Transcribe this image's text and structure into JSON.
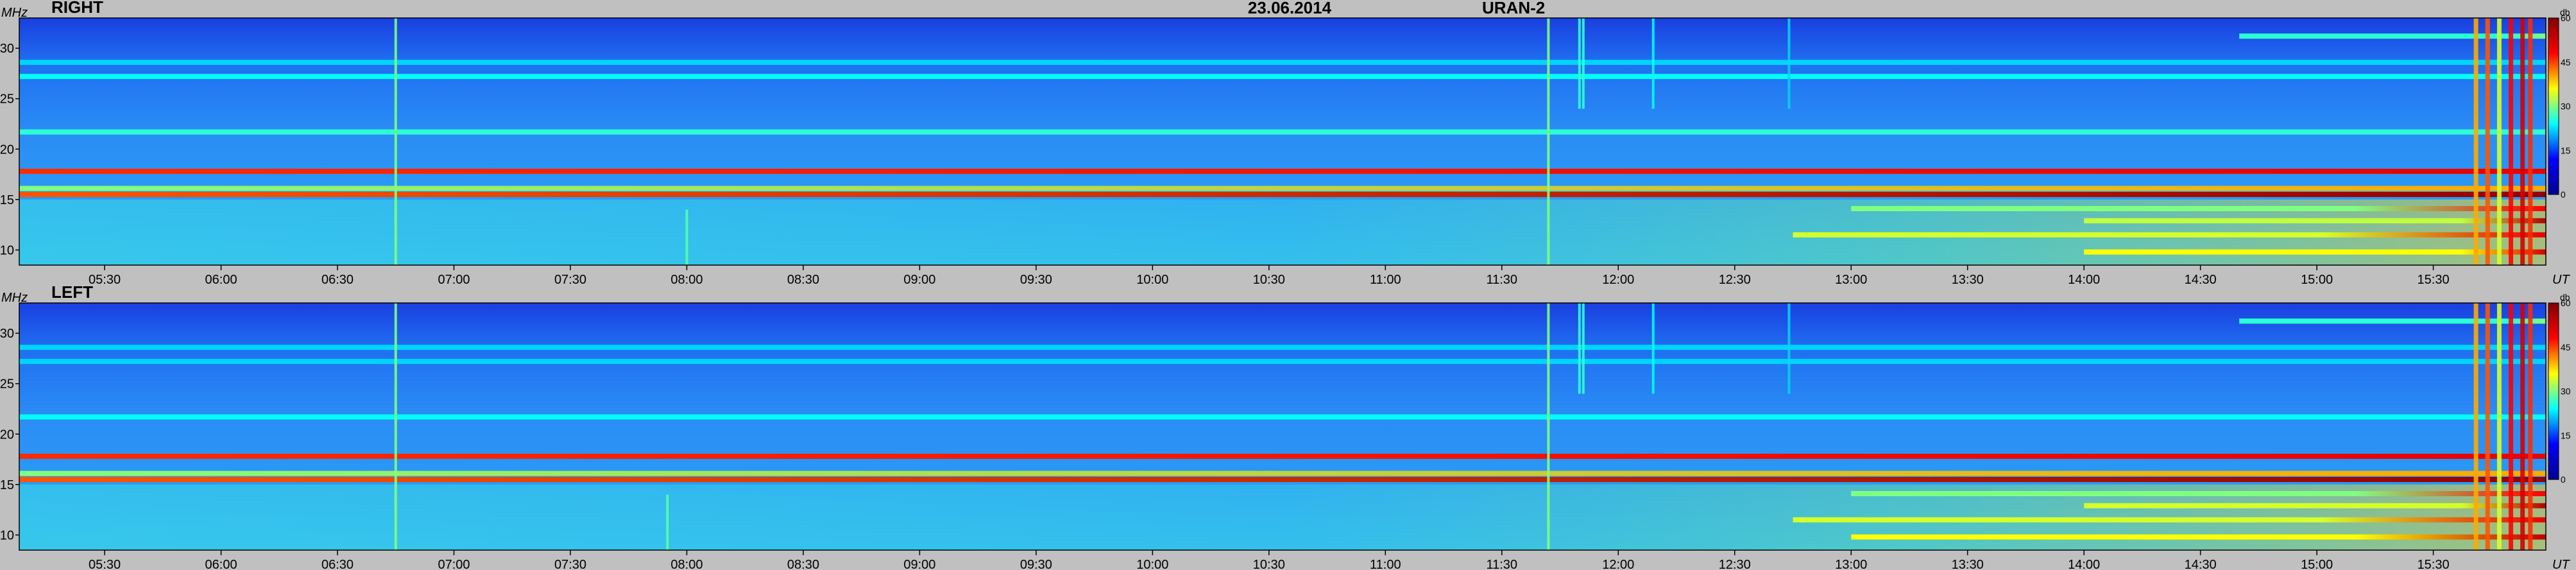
{
  "header": {
    "date": "23.06.2014",
    "instrument": "URAN-2"
  },
  "chart_data": {
    "type": "heatmap",
    "x_unit": "UT",
    "y_unit": "MHz",
    "x_range": [
      "05:08",
      "15:59"
    ],
    "y_range": [
      8.5,
      33
    ],
    "x_ticks": [
      "05:30",
      "06:00",
      "06:30",
      "07:00",
      "07:30",
      "08:00",
      "08:30",
      "09:00",
      "09:30",
      "10:00",
      "10:30",
      "11:00",
      "11:30",
      "12:00",
      "12:30",
      "13:00",
      "13:30",
      "14:00",
      "14:30",
      "15:00",
      "15:30"
    ],
    "y_ticks": [
      10,
      15,
      20,
      25,
      30
    ],
    "colorbar": {
      "unit": "db",
      "ticks": [
        0,
        15,
        30,
        45,
        60
      ],
      "range": [
        0,
        60
      ],
      "colormap": [
        "#00008f",
        "#0000ff",
        "#00ffff",
        "#ffff00",
        "#ff0000",
        "#800000"
      ]
    },
    "panels": [
      {
        "label": "RIGHT",
        "bands": [
          {
            "freq": 9.8,
            "level": 36,
            "start": "14:00",
            "end_level": 52
          },
          {
            "freq": 11.5,
            "level": 34,
            "start": "12:45",
            "end_level": 50
          },
          {
            "freq": 12.9,
            "level": 33,
            "start": "14:00",
            "end_level": 55
          },
          {
            "freq": 14.1,
            "level": 30,
            "start": "13:00",
            "end_level": 48
          },
          {
            "freq": 15.5,
            "level": 44,
            "start": "05:08",
            "end_level": 58
          },
          {
            "freq": 16.1,
            "level": 30,
            "start": "05:08",
            "end_level": 40
          },
          {
            "freq": 17.8,
            "level": 46,
            "start": "05:08",
            "end_level": 50
          },
          {
            "freq": 21.7,
            "level": 26,
            "start": "05:08",
            "end_level": 26
          },
          {
            "freq": 27.2,
            "level": 24,
            "start": "05:08",
            "end_level": 24
          },
          {
            "freq": 28.6,
            "level": 22,
            "start": "05:08",
            "end_level": 22
          },
          {
            "freq": 31.2,
            "level": 26,
            "start": "14:40",
            "end_level": 30
          }
        ],
        "bursts": [
          {
            "time": "06:45",
            "level": 30,
            "fmin": 8.5,
            "fmax": 33
          },
          {
            "time": "08:00",
            "level": 28,
            "fmin": 8.5,
            "fmax": 14
          },
          {
            "time": "11:42",
            "level": 30,
            "fmin": 8.5,
            "fmax": 33
          },
          {
            "time": "11:50",
            "level": 26,
            "fmin": 24,
            "fmax": 33
          },
          {
            "time": "11:51",
            "level": 26,
            "fmin": 24,
            "fmax": 33
          },
          {
            "time": "12:09",
            "level": 24,
            "fmin": 24,
            "fmax": 33
          },
          {
            "time": "12:44",
            "level": 22,
            "fmin": 24,
            "fmax": 33
          },
          {
            "time": "15:41",
            "level": 40,
            "fmin": 8.5,
            "fmax": 33
          },
          {
            "time": "15:44",
            "level": 44,
            "fmin": 8.5,
            "fmax": 33
          },
          {
            "time": "15:47",
            "level": 34,
            "fmin": 8.5,
            "fmax": 33
          },
          {
            "time": "15:50",
            "level": 48,
            "fmin": 8.5,
            "fmax": 33
          },
          {
            "time": "15:53",
            "level": 52,
            "fmin": 8.5,
            "fmax": 33
          },
          {
            "time": "15:55",
            "level": 46,
            "fmin": 8.5,
            "fmax": 33
          }
        ]
      },
      {
        "label": "LEFT",
        "bands": [
          {
            "freq": 9.8,
            "level": 36,
            "start": "13:00",
            "end_level": 54
          },
          {
            "freq": 11.5,
            "level": 34,
            "start": "12:45",
            "end_level": 50
          },
          {
            "freq": 12.9,
            "level": 34,
            "start": "14:00",
            "end_level": 55
          },
          {
            "freq": 14.1,
            "level": 30,
            "start": "13:00",
            "end_level": 48
          },
          {
            "freq": 15.5,
            "level": 44,
            "start": "05:08",
            "end_level": 58
          },
          {
            "freq": 16.1,
            "level": 30,
            "start": "05:08",
            "end_level": 40
          },
          {
            "freq": 17.8,
            "level": 46,
            "start": "05:08",
            "end_level": 50
          },
          {
            "freq": 21.7,
            "level": 24,
            "start": "05:08",
            "end_level": 24
          },
          {
            "freq": 27.2,
            "level": 22,
            "start": "05:08",
            "end_level": 22
          },
          {
            "freq": 28.6,
            "level": 22,
            "start": "05:08",
            "end_level": 22
          },
          {
            "freq": 31.2,
            "level": 26,
            "start": "14:40",
            "end_level": 30
          }
        ],
        "bursts": [
          {
            "time": "06:45",
            "level": 30,
            "fmin": 8.5,
            "fmax": 33
          },
          {
            "time": "07:55",
            "level": 28,
            "fmin": 8.5,
            "fmax": 14
          },
          {
            "time": "11:42",
            "level": 30,
            "fmin": 8.5,
            "fmax": 33
          },
          {
            "time": "11:50",
            "level": 26,
            "fmin": 24,
            "fmax": 33
          },
          {
            "time": "11:51",
            "level": 26,
            "fmin": 24,
            "fmax": 33
          },
          {
            "time": "12:09",
            "level": 24,
            "fmin": 24,
            "fmax": 33
          },
          {
            "time": "12:44",
            "level": 22,
            "fmin": 24,
            "fmax": 33
          },
          {
            "time": "15:41",
            "level": 40,
            "fmin": 8.5,
            "fmax": 33
          },
          {
            "time": "15:44",
            "level": 44,
            "fmin": 8.5,
            "fmax": 33
          },
          {
            "time": "15:47",
            "level": 34,
            "fmin": 8.5,
            "fmax": 33
          },
          {
            "time": "15:50",
            "level": 48,
            "fmin": 8.5,
            "fmax": 33
          },
          {
            "time": "15:53",
            "level": 52,
            "fmin": 8.5,
            "fmax": 33
          },
          {
            "time": "15:55",
            "level": 46,
            "fmin": 8.5,
            "fmax": 33
          }
        ]
      }
    ]
  }
}
